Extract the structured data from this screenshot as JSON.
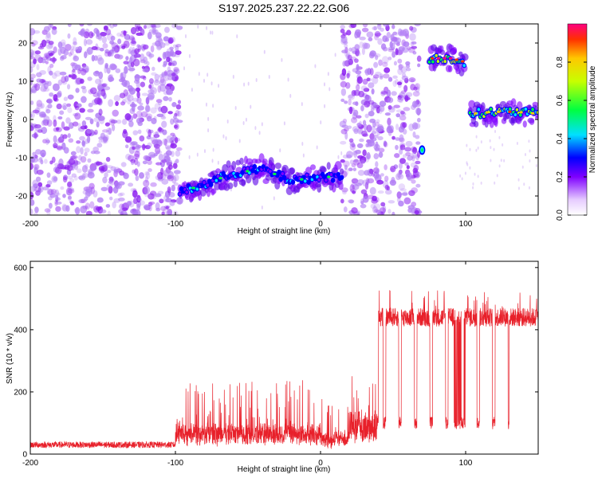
{
  "title": "S197.2025.237.22.22.G06",
  "chart_data": [
    {
      "type": "heatmap",
      "xlabel": "Height of straight line (km)",
      "ylabel": "Frequency (Hz)",
      "xlim": [
        -200,
        150
      ],
      "ylim": [
        -25,
        25
      ],
      "xticks": [
        -200,
        -100,
        0,
        100
      ],
      "yticks": [
        20,
        10,
        0,
        -10,
        -20
      ],
      "colorbar": {
        "label": "Normalized spectral amplitude",
        "range": [
          0,
          1
        ],
        "ticks": [
          "0.0",
          "0.2",
          "0.4",
          "0.6",
          "0.8"
        ],
        "tick_values": [
          0,
          0.2,
          0.4,
          0.6,
          0.8
        ]
      },
      "features": [
        {
          "name": "broadband noise",
          "x_range": [
            -200,
            -97
          ],
          "freq_range": [
            -25,
            25
          ],
          "amplitude": 0.2
        },
        {
          "name": "descending track",
          "points": [
            [
              -97,
              -19
            ],
            [
              -80,
              -17
            ],
            [
              -60,
              -14
            ],
            [
              -40,
              -13
            ],
            [
              -20,
              -16
            ],
            [
              0,
              -15
            ],
            [
              15,
              -15
            ]
          ],
          "amplitude": 0.4
        },
        {
          "name": "broadband noise",
          "x_range": [
            15,
            68
          ],
          "freq_range": [
            -25,
            25
          ],
          "amplitude": 0.2
        },
        {
          "name": "isolated blob",
          "points": [
            [
              70,
              -8
            ]
          ],
          "amplitude": 0.5
        },
        {
          "name": "upper band",
          "points": [
            [
              75,
              16
            ],
            [
              82,
              16
            ],
            [
              90,
              16
            ],
            [
              100,
              15
            ]
          ],
          "amplitude": 0.8
        },
        {
          "name": "lower band",
          "points": [
            [
              103,
              1.5
            ],
            [
              120,
              2
            ],
            [
              135,
              2
            ],
            [
              150,
              1.5
            ]
          ],
          "amplitude": 0.7
        }
      ]
    },
    {
      "type": "line",
      "xlabel": "Height of straight line (km)",
      "ylabel": "SNR (10 * v/v)",
      "xlim": [
        -200,
        150
      ],
      "ylim": [
        0,
        620
      ],
      "xticks": [
        -200,
        -100,
        0,
        100
      ],
      "yticks": [
        0,
        200,
        400,
        600
      ],
      "color": "#e8202a",
      "segments": [
        {
          "x_range": [
            -200,
            -100
          ],
          "base": 20,
          "spread": 20
        },
        {
          "x_range": [
            -100,
            0
          ],
          "base": 60,
          "spread": 200
        },
        {
          "x_range": [
            0,
            20
          ],
          "base": 40,
          "spread": 150
        },
        {
          "x_range": [
            20,
            40
          ],
          "base": 80,
          "spread": 300
        },
        {
          "x_range": [
            40,
            150
          ],
          "base": 440,
          "spread": 60,
          "dropout_level": 100
        }
      ]
    }
  ]
}
